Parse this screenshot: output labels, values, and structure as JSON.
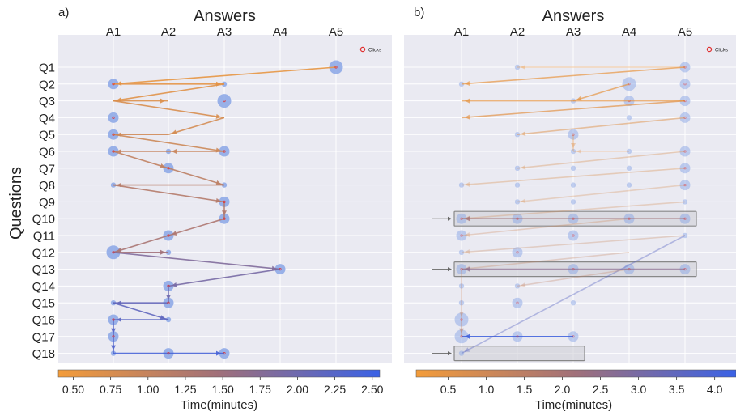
{
  "figure": {
    "xlabel": "Answers",
    "ylabel": "Questions",
    "answers": [
      "A1",
      "A2",
      "A3",
      "A4",
      "A5"
    ],
    "questions": [
      "Q1",
      "Q2",
      "Q3",
      "Q4",
      "Q5",
      "Q6",
      "Q7",
      "Q8",
      "Q9",
      "Q10",
      "Q11",
      "Q12",
      "Q13",
      "Q14",
      "Q15",
      "Q16",
      "Q17",
      "Q18"
    ],
    "legend_label": "Clicks",
    "colorbar_label": "Time(minutes)",
    "color_low": "#f39c3a",
    "color_mid": "#a0707a",
    "color_high": "#3a62e6",
    "bubble_color": "#8aa6e6",
    "grid": true
  },
  "chart_data": [
    {
      "panel_label": "a)",
      "type": "scatter",
      "x_axis": "Answers (top)",
      "y_axis": "Questions",
      "colorbar": {
        "ticks": [
          "0.50",
          "0.75",
          "1.00",
          "1.25",
          "1.50",
          "1.75",
          "2.00",
          "2.25",
          "2.50"
        ],
        "range": [
          0.4,
          2.55
        ]
      },
      "bubble_sizes": [
        [
          1,
          5,
          3
        ],
        [
          2,
          1,
          2
        ],
        [
          2,
          3,
          1
        ],
        [
          3,
          3,
          3
        ],
        [
          4,
          1,
          2
        ],
        [
          5,
          1,
          2
        ],
        [
          6,
          1,
          2
        ],
        [
          6,
          2,
          1
        ],
        [
          6,
          3,
          2
        ],
        [
          7,
          2,
          2
        ],
        [
          8,
          1,
          1
        ],
        [
          8,
          3,
          1
        ],
        [
          9,
          3,
          2
        ],
        [
          10,
          3,
          2
        ],
        [
          11,
          2,
          2
        ],
        [
          12,
          1,
          3
        ],
        [
          12,
          2,
          1
        ],
        [
          13,
          4,
          2
        ],
        [
          14,
          2,
          2
        ],
        [
          15,
          1,
          1
        ],
        [
          15,
          2,
          2
        ],
        [
          16,
          1,
          2
        ],
        [
          16,
          2,
          1
        ],
        [
          17,
          1,
          2
        ],
        [
          18,
          1,
          1
        ],
        [
          18,
          2,
          2
        ],
        [
          18,
          3,
          2
        ]
      ],
      "path": [
        {
          "from": [
            1,
            5
          ],
          "to": [
            2,
            1
          ],
          "t": 0.55
        },
        {
          "from": [
            2,
            1
          ],
          "to": [
            2,
            3
          ],
          "t": 0.6
        },
        {
          "from": [
            2,
            3
          ],
          "to": [
            3,
            1
          ],
          "t": 0.65
        },
        {
          "from": [
            3,
            1
          ],
          "to": [
            3,
            2
          ],
          "t": 0.7
        },
        {
          "from": [
            3,
            1
          ],
          "to": [
            4,
            3
          ],
          "t": 0.75
        },
        {
          "from": [
            4,
            3
          ],
          "to": [
            5,
            2
          ],
          "t": 0.8
        },
        {
          "from": [
            5,
            2
          ],
          "to": [
            5,
            1
          ],
          "t": 0.85
        },
        {
          "from": [
            5,
            1
          ],
          "to": [
            6,
            3
          ],
          "t": 0.9
        },
        {
          "from": [
            6,
            3
          ],
          "to": [
            6,
            2
          ],
          "t": 0.95
        },
        {
          "from": [
            6,
            2
          ],
          "to": [
            6,
            1
          ],
          "t": 1.0
        },
        {
          "from": [
            6,
            1
          ],
          "to": [
            7,
            2
          ],
          "t": 1.05
        },
        {
          "from": [
            7,
            2
          ],
          "to": [
            8,
            3
          ],
          "t": 1.1
        },
        {
          "from": [
            8,
            3
          ],
          "to": [
            8,
            1
          ],
          "t": 1.15
        },
        {
          "from": [
            8,
            1
          ],
          "to": [
            9,
            3
          ],
          "t": 1.2
        },
        {
          "from": [
            9,
            3
          ],
          "to": [
            10,
            3
          ],
          "t": 1.25
        },
        {
          "from": [
            10,
            3
          ],
          "to": [
            11,
            2
          ],
          "t": 1.3
        },
        {
          "from": [
            11,
            2
          ],
          "to": [
            12,
            1
          ],
          "t": 1.35
        },
        {
          "from": [
            12,
            1
          ],
          "to": [
            12,
            2
          ],
          "t": 1.45
        },
        {
          "from": [
            12,
            1
          ],
          "to": [
            13,
            4
          ],
          "t": 1.8
        },
        {
          "from": [
            13,
            4
          ],
          "to": [
            14,
            2
          ],
          "t": 1.9
        },
        {
          "from": [
            14,
            2
          ],
          "to": [
            15,
            2
          ],
          "t": 2.0
        },
        {
          "from": [
            15,
            2
          ],
          "to": [
            15,
            1
          ],
          "t": 2.1
        },
        {
          "from": [
            15,
            1
          ],
          "to": [
            16,
            2
          ],
          "t": 2.15
        },
        {
          "from": [
            16,
            2
          ],
          "to": [
            16,
            1
          ],
          "t": 2.2
        },
        {
          "from": [
            16,
            1
          ],
          "to": [
            17,
            1
          ],
          "t": 2.25
        },
        {
          "from": [
            17,
            1
          ],
          "to": [
            18,
            1
          ],
          "t": 2.3
        },
        {
          "from": [
            18,
            1
          ],
          "to": [
            18,
            3
          ],
          "t": 2.4
        }
      ]
    },
    {
      "panel_label": "b)",
      "type": "scatter",
      "x_axis": "Answers (top)",
      "y_axis": "Questions",
      "colorbar": {
        "ticks": [
          "0.5",
          "1.0",
          "1.5",
          "2.0",
          "2.5",
          "3.0",
          "3.5",
          "4.0"
        ],
        "range": [
          0.08,
          4.28
        ]
      },
      "highlighted_rows": [
        10,
        13,
        18
      ],
      "bubble_sizes": [
        [
          1,
          2,
          1
        ],
        [
          1,
          5,
          2
        ],
        [
          2,
          1,
          1
        ],
        [
          2,
          4,
          3
        ],
        [
          2,
          5,
          2
        ],
        [
          3,
          3,
          1
        ],
        [
          3,
          4,
          2
        ],
        [
          3,
          5,
          2
        ],
        [
          4,
          4,
          1
        ],
        [
          4,
          5,
          2
        ],
        [
          5,
          2,
          1
        ],
        [
          5,
          3,
          2
        ],
        [
          6,
          3,
          1
        ],
        [
          6,
          4,
          1
        ],
        [
          6,
          5,
          2
        ],
        [
          7,
          2,
          1
        ],
        [
          7,
          3,
          1
        ],
        [
          7,
          4,
          1
        ],
        [
          7,
          5,
          2
        ],
        [
          8,
          1,
          1
        ],
        [
          8,
          2,
          1
        ],
        [
          8,
          3,
          1
        ],
        [
          8,
          4,
          1
        ],
        [
          8,
          5,
          2
        ],
        [
          9,
          2,
          1
        ],
        [
          9,
          3,
          1
        ],
        [
          9,
          5,
          1
        ],
        [
          10,
          1,
          2
        ],
        [
          10,
          2,
          2
        ],
        [
          10,
          3,
          2
        ],
        [
          10,
          4,
          2
        ],
        [
          10,
          5,
          2
        ],
        [
          11,
          1,
          2
        ],
        [
          11,
          3,
          2
        ],
        [
          11,
          5,
          1
        ],
        [
          12,
          1,
          1
        ],
        [
          12,
          2,
          2
        ],
        [
          13,
          1,
          2
        ],
        [
          13,
          3,
          2
        ],
        [
          13,
          4,
          2
        ],
        [
          13,
          5,
          2
        ],
        [
          14,
          1,
          1
        ],
        [
          14,
          2,
          1
        ],
        [
          15,
          1,
          1
        ],
        [
          15,
          2,
          2
        ],
        [
          15,
          3,
          1
        ],
        [
          16,
          1,
          3
        ],
        [
          17,
          1,
          3
        ],
        [
          17,
          2,
          2
        ],
        [
          17,
          3,
          2
        ],
        [
          18,
          1,
          1
        ]
      ],
      "path": [
        {
          "from": [
            1,
            5
          ],
          "to": [
            1,
            2
          ],
          "t": 0.3,
          "a": 0.35
        },
        {
          "from": [
            1,
            5
          ],
          "to": [
            2,
            1
          ],
          "t": 0.35,
          "a": 0.7
        },
        {
          "from": [
            2,
            4
          ],
          "to": [
            3,
            3
          ],
          "t": 0.4,
          "a": 0.7
        },
        {
          "from": [
            3,
            5
          ],
          "to": [
            3,
            1
          ],
          "t": 0.45,
          "a": 0.7
        },
        {
          "from": [
            3,
            5
          ],
          "to": [
            4,
            1
          ],
          "t": 0.5,
          "a": 0.7
        },
        {
          "from": [
            4,
            5
          ],
          "to": [
            5,
            2
          ],
          "t": 0.55,
          "a": 0.5
        },
        {
          "from": [
            5,
            3
          ],
          "to": [
            6,
            3
          ],
          "t": 0.6,
          "a": 0.4
        },
        {
          "from": [
            6,
            4
          ],
          "to": [
            6,
            3
          ],
          "t": 0.65,
          "a": 0.3
        },
        {
          "from": [
            6,
            5
          ],
          "to": [
            7,
            2
          ],
          "t": 0.7,
          "a": 0.35
        },
        {
          "from": [
            7,
            5
          ],
          "to": [
            8,
            1
          ],
          "t": 0.75,
          "a": 0.35
        },
        {
          "from": [
            8,
            5
          ],
          "to": [
            9,
            2
          ],
          "t": 0.8,
          "a": 0.3
        },
        {
          "from": [
            9,
            5
          ],
          "to": [
            10,
            1
          ],
          "t": 0.85,
          "a": 0.3
        },
        {
          "from": [
            10,
            5
          ],
          "to": [
            10,
            1
          ],
          "t": 2.1,
          "a": 0.75
        },
        {
          "from": [
            10,
            4
          ],
          "to": [
            11,
            1
          ],
          "t": 1.0,
          "a": 0.3
        },
        {
          "from": [
            11,
            5
          ],
          "to": [
            12,
            1
          ],
          "t": 1.1,
          "a": 0.3
        },
        {
          "from": [
            12,
            4
          ],
          "to": [
            13,
            1
          ],
          "t": 1.2,
          "a": 0.3
        },
        {
          "from": [
            13,
            5
          ],
          "to": [
            13,
            1
          ],
          "t": 2.6,
          "a": 0.7
        },
        {
          "from": [
            13,
            1
          ],
          "to": [
            16,
            1
          ],
          "t": 1.4,
          "a": 0.35
        },
        {
          "from": [
            16,
            1
          ],
          "to": [
            17,
            1
          ],
          "t": 1.5,
          "a": 0.45
        },
        {
          "from": [
            17,
            3
          ],
          "to": [
            17,
            1
          ],
          "t": 4.1,
          "a": 0.9
        },
        {
          "from": [
            11,
            5
          ],
          "to": [
            18,
            1
          ],
          "t": 3.6,
          "a": 0.4
        },
        {
          "from": [
            13,
            4
          ],
          "to": [
            14,
            2
          ],
          "t": 1.3,
          "a": 0.3
        }
      ]
    }
  ]
}
